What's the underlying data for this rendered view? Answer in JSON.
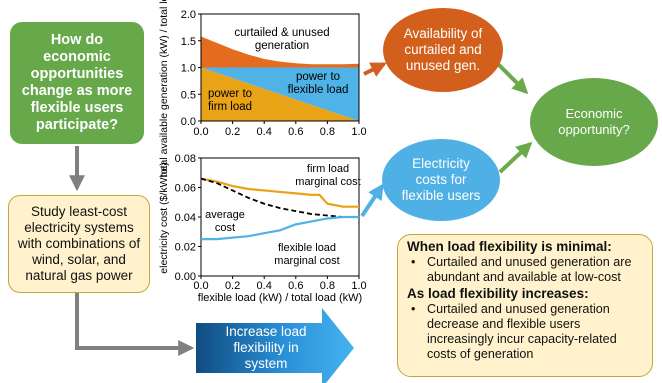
{
  "question_box": {
    "text": "How do economic opportunities change as more flexible users participate?"
  },
  "study_box": {
    "text": "Study least-cost electricity systems with combinations of wind, solar, and natural gas power"
  },
  "arrow_label": {
    "text": "Increase load flexibility in system"
  },
  "availability_ellipse": {
    "text": "Availability of curtailed and unused gen."
  },
  "costs_ellipse": {
    "text": "Electricity costs for flexible users"
  },
  "economic_ellipse": {
    "text": "Economic opportunity?"
  },
  "note_box": {
    "heading_minimal": "When load flexibility is minimal:",
    "bullet_minimal": "Curtailed and unused generation are abundant and available at low-cost",
    "heading_increases": "As load flexibility increases:",
    "bullet_increases": "Curtailed and unused generation decrease and flexible users increasingly incur capacity-related costs of generation",
    "bullet_symbol": "•"
  },
  "colors": {
    "green": "#66a84a",
    "orange": "#d35f1c",
    "orange_area": "#e56b1f",
    "yellow_area": "#e8a317",
    "blue_area": "#4fb3e8",
    "blue_ellipse": "#4fb0e6",
    "tan": "#fff2cc",
    "arrow_gray": "#808080"
  },
  "chart_data": [
    {
      "type": "area",
      "ylabel": "total available generation (kW) / total load (kW)",
      "xlim": [
        0.0,
        1.0
      ],
      "ylim": [
        0.0,
        2.0
      ],
      "x_ticks": [
        "0.0",
        "0.2",
        "0.4",
        "0.6",
        "0.8",
        "1.0"
      ],
      "y_ticks": [
        "0.0",
        "0.5",
        "1.0",
        "1.5",
        "2.0"
      ],
      "series": [
        {
          "name": "curtailed & unused generation",
          "x": [
            0.0,
            0.1,
            0.2,
            0.3,
            0.4,
            0.5,
            0.6,
            0.7,
            0.8,
            0.9,
            1.0
          ],
          "upper": [
            1.58,
            1.46,
            1.34,
            1.24,
            1.16,
            1.11,
            1.08,
            1.06,
            1.06,
            1.06,
            1.07
          ],
          "lower": [
            1.0,
            1.0,
            1.0,
            1.0,
            1.0,
            1.0,
            1.0,
            1.0,
            1.0,
            1.0,
            1.0
          ]
        },
        {
          "name": "power to flexible load",
          "x": [
            0.0,
            1.0
          ],
          "upper": [
            1.0,
            1.0
          ],
          "lower": [
            1.0,
            0.0
          ]
        },
        {
          "name": "power to firm load",
          "x": [
            0.0,
            1.0
          ],
          "upper": [
            1.0,
            0.0
          ],
          "lower": [
            0.0,
            0.0
          ]
        }
      ],
      "labels": {
        "curtailed": "curtailed & unused generation",
        "flexible": "power to flexible load",
        "firm": "power to firm load"
      }
    },
    {
      "type": "line",
      "xlabel": "flexible load (kW) / total load (kW)",
      "ylabel": "electricity cost ($/kWhe)",
      "xlim": [
        0.0,
        1.0
      ],
      "ylim": [
        0.0,
        0.08
      ],
      "x_ticks": [
        "0.0",
        "0.2",
        "0.4",
        "0.6",
        "0.8",
        "1.0"
      ],
      "y_ticks": [
        "0.00",
        "0.02",
        "0.04",
        "0.06",
        "0.08"
      ],
      "series": [
        {
          "name": "firm load marginal cost",
          "x": [
            0.0,
            0.1,
            0.2,
            0.3,
            0.4,
            0.5,
            0.6,
            0.7,
            0.75,
            0.8,
            0.85,
            0.9,
            1.0
          ],
          "y": [
            0.066,
            0.064,
            0.061,
            0.059,
            0.058,
            0.057,
            0.056,
            0.055,
            0.055,
            0.049,
            0.048,
            0.047,
            0.047
          ]
        },
        {
          "name": "average cost",
          "x": [
            0.0,
            0.1,
            0.2,
            0.3,
            0.4,
            0.5,
            0.6,
            0.7,
            0.8,
            0.9,
            1.0
          ],
          "y": [
            0.066,
            0.063,
            0.058,
            0.053,
            0.049,
            0.046,
            0.044,
            0.042,
            0.041,
            0.04,
            0.04
          ]
        },
        {
          "name": "flexible load marginal cost",
          "x": [
            0.0,
            0.1,
            0.2,
            0.3,
            0.4,
            0.5,
            0.55,
            0.6,
            0.7,
            0.8,
            0.9,
            1.0
          ],
          "y": [
            0.025,
            0.025,
            0.026,
            0.027,
            0.029,
            0.031,
            0.033,
            0.035,
            0.037,
            0.039,
            0.04,
            0.04
          ]
        }
      ],
      "labels": {
        "firm": "firm load marginal cost",
        "average": "average cost",
        "flexible": "flexible load marginal cost"
      }
    }
  ]
}
